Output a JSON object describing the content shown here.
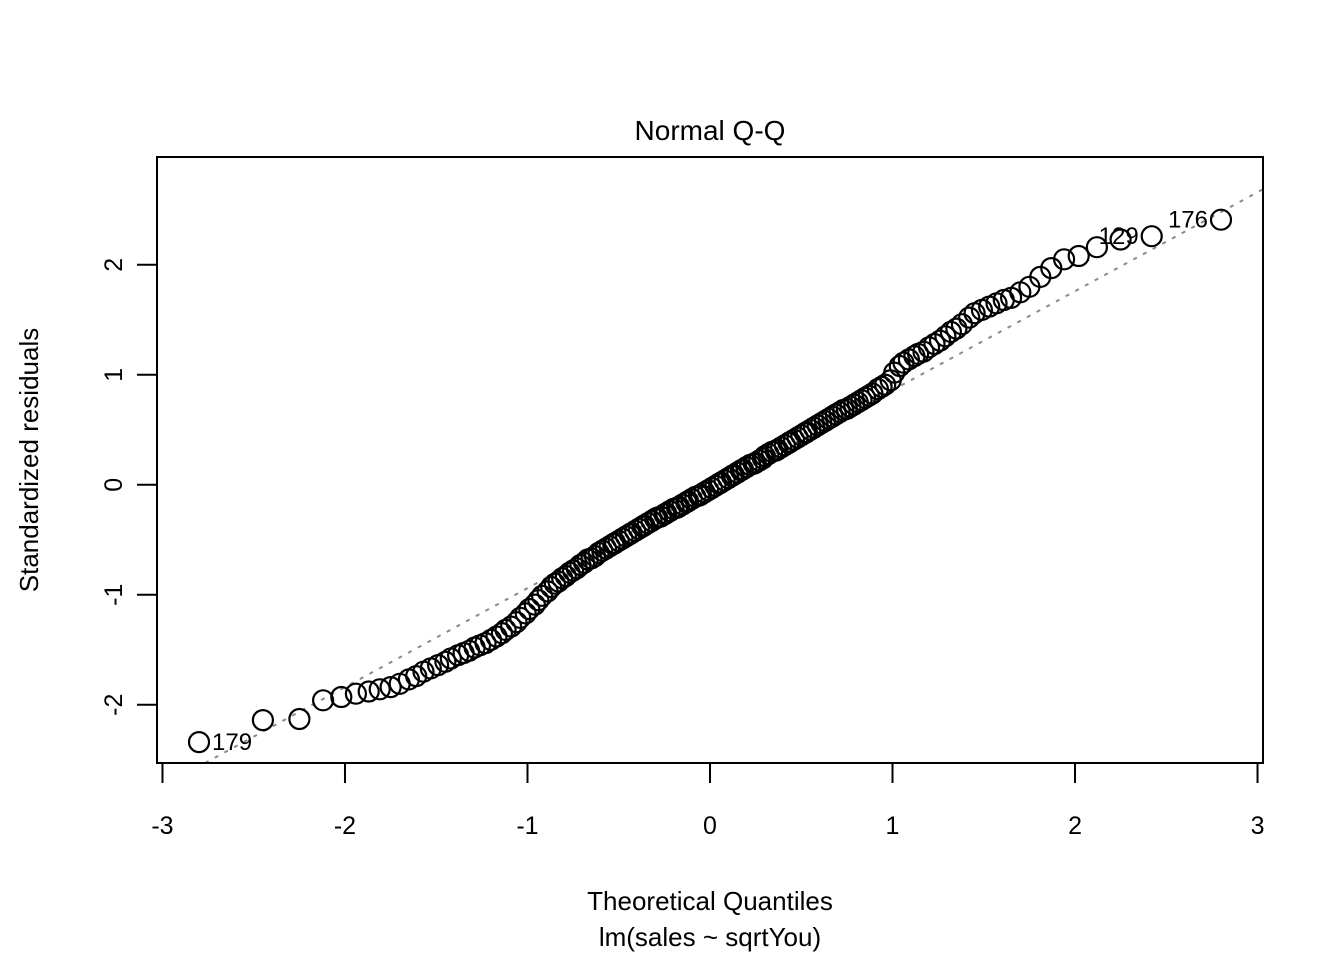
{
  "figure": {
    "title": "Normal Q-Q",
    "xlabel": "Theoretical Quantiles",
    "xsublabel": "lm(sales ~ sqrtYou)",
    "ylabel": "Standardized residuals"
  },
  "chart_data": {
    "type": "scatter",
    "title": "Normal Q-Q",
    "xlabel": "Theoretical Quantiles",
    "ylabel": "Standardized residuals",
    "model_call": "lm(sales ~ sqrtYou)",
    "xlim": [
      -3.03,
      3.03
    ],
    "ylim": [
      -2.53,
      2.98
    ],
    "x_ticks": [
      -3,
      -2,
      -1,
      0,
      1,
      2,
      3
    ],
    "y_ticks": [
      -2,
      -1,
      0,
      1,
      2
    ],
    "grid": false,
    "legend": null,
    "marker": {
      "shape": "open-circle",
      "color": "#000000",
      "radius_px": 10
    },
    "reference_line": {
      "type": "qqline",
      "style": "dotted",
      "color": "#8a8a8a",
      "slope": 0.9,
      "intercept": -0.04
    },
    "labeled_points": [
      {
        "label": "179",
        "x": -2.8,
        "y": -2.34,
        "side": "right"
      },
      {
        "label": "129",
        "x": 2.42,
        "y": 2.26,
        "side": "left"
      },
      {
        "label": "176",
        "x": 2.8,
        "y": 2.41,
        "side": "left"
      }
    ],
    "points": [
      [
        -2.8,
        -2.34
      ],
      [
        -2.45,
        -2.14
      ],
      [
        -2.25,
        -2.13
      ],
      [
        -2.12,
        -1.96
      ],
      [
        -2.02,
        -1.93
      ],
      [
        -1.94,
        -1.9
      ],
      [
        -1.87,
        -1.88
      ],
      [
        -1.81,
        -1.86
      ],
      [
        -1.75,
        -1.84
      ],
      [
        -1.7,
        -1.81
      ],
      [
        -1.65,
        -1.77
      ],
      [
        -1.61,
        -1.74
      ],
      [
        -1.57,
        -1.7
      ],
      [
        -1.53,
        -1.67
      ],
      [
        -1.49,
        -1.64
      ],
      [
        -1.45,
        -1.61
      ],
      [
        -1.42,
        -1.58
      ],
      [
        -1.38,
        -1.55
      ],
      [
        -1.35,
        -1.53
      ],
      [
        -1.32,
        -1.51
      ],
      [
        -1.29,
        -1.48
      ],
      [
        -1.26,
        -1.46
      ],
      [
        -1.23,
        -1.44
      ],
      [
        -1.2,
        -1.41
      ],
      [
        -1.17,
        -1.38
      ],
      [
        -1.14,
        -1.35
      ],
      [
        -1.12,
        -1.32
      ],
      [
        -1.09,
        -1.29
      ],
      [
        -1.06,
        -1.25
      ],
      [
        -1.04,
        -1.21
      ],
      [
        -1.01,
        -1.17
      ],
      [
        -0.99,
        -1.13
      ],
      [
        -0.96,
        -1.09
      ],
      [
        -0.94,
        -1.05
      ],
      [
        -0.92,
        -1.01
      ],
      [
        -0.89,
        -0.97
      ],
      [
        -0.87,
        -0.93
      ],
      [
        -0.85,
        -0.9
      ],
      [
        -0.83,
        -0.88
      ],
      [
        -0.81,
        -0.85
      ],
      [
        -0.79,
        -0.83
      ],
      [
        -0.77,
        -0.8
      ],
      [
        -0.75,
        -0.78
      ],
      [
        -0.73,
        -0.76
      ],
      [
        -0.71,
        -0.73
      ],
      [
        -0.69,
        -0.71
      ],
      [
        -0.67,
        -0.68
      ],
      [
        -0.65,
        -0.67
      ],
      [
        -0.63,
        -0.65
      ],
      [
        -0.61,
        -0.62
      ],
      [
        -0.59,
        -0.6
      ],
      [
        -0.57,
        -0.58
      ],
      [
        -0.55,
        -0.56
      ],
      [
        -0.53,
        -0.54
      ],
      [
        -0.52,
        -0.53
      ],
      [
        -0.5,
        -0.51
      ],
      [
        -0.48,
        -0.49
      ],
      [
        -0.46,
        -0.47
      ],
      [
        -0.44,
        -0.45
      ],
      [
        -0.43,
        -0.44
      ],
      [
        -0.41,
        -0.42
      ],
      [
        -0.39,
        -0.4
      ],
      [
        -0.37,
        -0.38
      ],
      [
        -0.36,
        -0.37
      ],
      [
        -0.34,
        -0.35
      ],
      [
        -0.32,
        -0.33
      ],
      [
        -0.3,
        -0.31
      ],
      [
        -0.29,
        -0.3
      ],
      [
        -0.27,
        -0.29
      ],
      [
        -0.25,
        -0.27
      ],
      [
        -0.24,
        -0.26
      ],
      [
        -0.22,
        -0.24
      ],
      [
        -0.2,
        -0.22
      ],
      [
        -0.18,
        -0.21
      ],
      [
        -0.17,
        -0.2
      ],
      [
        -0.15,
        -0.18
      ],
      [
        -0.13,
        -0.16
      ],
      [
        -0.12,
        -0.15
      ],
      [
        -0.1,
        -0.13
      ],
      [
        -0.08,
        -0.11
      ],
      [
        -0.06,
        -0.1
      ],
      [
        -0.05,
        -0.09
      ],
      [
        -0.03,
        -0.07
      ],
      [
        -0.01,
        -0.05
      ],
      [
        0.01,
        -0.03
      ],
      [
        0.03,
        -0.01
      ],
      [
        0.05,
        0.01
      ],
      [
        0.06,
        0.02
      ],
      [
        0.08,
        0.04
      ],
      [
        0.1,
        0.06
      ],
      [
        0.12,
        0.08
      ],
      [
        0.13,
        0.09
      ],
      [
        0.15,
        0.11
      ],
      [
        0.17,
        0.13
      ],
      [
        0.18,
        0.14
      ],
      [
        0.2,
        0.16
      ],
      [
        0.22,
        0.18
      ],
      [
        0.24,
        0.19
      ],
      [
        0.25,
        0.2
      ],
      [
        0.27,
        0.22
      ],
      [
        0.29,
        0.24
      ],
      [
        0.3,
        0.26
      ],
      [
        0.32,
        0.28
      ],
      [
        0.34,
        0.3
      ],
      [
        0.36,
        0.31
      ],
      [
        0.37,
        0.32
      ],
      [
        0.39,
        0.34
      ],
      [
        0.41,
        0.36
      ],
      [
        0.43,
        0.38
      ],
      [
        0.44,
        0.39
      ],
      [
        0.46,
        0.41
      ],
      [
        0.48,
        0.43
      ],
      [
        0.5,
        0.45
      ],
      [
        0.52,
        0.47
      ],
      [
        0.53,
        0.48
      ],
      [
        0.55,
        0.5
      ],
      [
        0.57,
        0.52
      ],
      [
        0.59,
        0.54
      ],
      [
        0.61,
        0.56
      ],
      [
        0.63,
        0.58
      ],
      [
        0.65,
        0.6
      ],
      [
        0.67,
        0.62
      ],
      [
        0.69,
        0.64
      ],
      [
        0.71,
        0.66
      ],
      [
        0.73,
        0.68
      ],
      [
        0.75,
        0.69
      ],
      [
        0.77,
        0.71
      ],
      [
        0.79,
        0.73
      ],
      [
        0.81,
        0.75
      ],
      [
        0.83,
        0.77
      ],
      [
        0.85,
        0.79
      ],
      [
        0.87,
        0.81
      ],
      [
        0.89,
        0.83
      ],
      [
        0.92,
        0.87
      ],
      [
        0.94,
        0.89
      ],
      [
        0.96,
        0.91
      ],
      [
        0.99,
        0.95
      ],
      [
        1.01,
        1.02
      ],
      [
        1.04,
        1.08
      ],
      [
        1.06,
        1.11
      ],
      [
        1.09,
        1.14
      ],
      [
        1.12,
        1.17
      ],
      [
        1.14,
        1.19
      ],
      [
        1.17,
        1.21
      ],
      [
        1.2,
        1.25
      ],
      [
        1.23,
        1.28
      ],
      [
        1.26,
        1.31
      ],
      [
        1.29,
        1.35
      ],
      [
        1.32,
        1.39
      ],
      [
        1.35,
        1.42
      ],
      [
        1.38,
        1.46
      ],
      [
        1.42,
        1.52
      ],
      [
        1.45,
        1.56
      ],
      [
        1.49,
        1.59
      ],
      [
        1.53,
        1.62
      ],
      [
        1.57,
        1.65
      ],
      [
        1.61,
        1.68
      ],
      [
        1.65,
        1.7
      ],
      [
        1.7,
        1.75
      ],
      [
        1.75,
        1.8
      ],
      [
        1.81,
        1.89
      ],
      [
        1.87,
        1.97
      ],
      [
        1.94,
        2.05
      ],
      [
        2.02,
        2.08
      ],
      [
        2.12,
        2.16
      ],
      [
        2.25,
        2.23
      ],
      [
        2.42,
        2.26
      ],
      [
        2.8,
        2.41
      ]
    ]
  }
}
